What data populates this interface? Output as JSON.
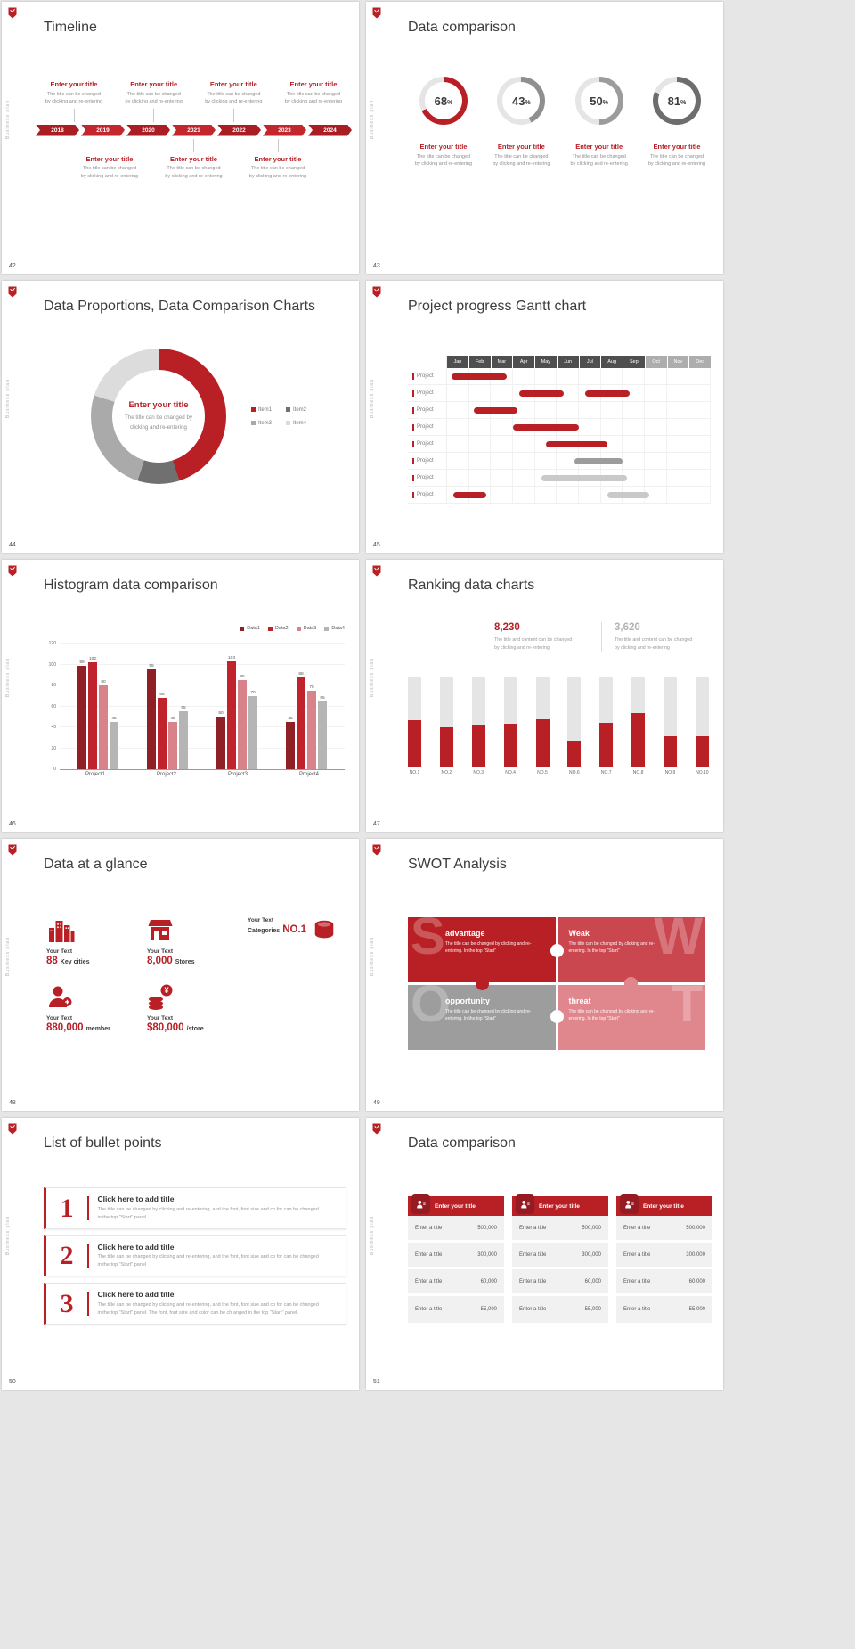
{
  "palette": {
    "accent": "#b92025",
    "accent_dark": "#951a22",
    "pink": "#e0868d",
    "gray": "#9d9d9d",
    "track": "#e5e5e5"
  },
  "frame": {
    "side_label": "Business plan"
  },
  "slide42": {
    "number": "42",
    "title": "Timeline",
    "item_title": "Enter your title",
    "item_line1": "The title can be changed",
    "item_line2": "by clicking and re-entering",
    "years": [
      "2018",
      "2019",
      "2020",
      "2021",
      "2022",
      "2023",
      "2024"
    ],
    "top_count": 4,
    "bottom_count": 3
  },
  "slide43": {
    "number": "43",
    "title": "Data comparison",
    "item_title": "Enter your title",
    "item_line1": "The title can be changed",
    "item_line2": "by clicking and re-entering"
  },
  "slide44": {
    "number": "44",
    "title": "Data Proportions, Data Comparison Charts",
    "center_title": "Enter your title",
    "center_line1": "The title can be changed by",
    "center_line2": "clicking and re-entering"
  },
  "slide45": {
    "number": "45",
    "title": "Project progress Gantt chart"
  },
  "slide46": {
    "number": "46",
    "title": "Histogram data comparison"
  },
  "slide47": {
    "number": "47",
    "title": "Ranking data charts",
    "stat1": "8,230",
    "stat2": "3,620",
    "note_line1": "The title and content can be changed",
    "note_line2": "by clicking and re-entering"
  },
  "slide48": {
    "number": "48",
    "title": "Data at a glance",
    "items": [
      {
        "label": "Your Text",
        "value": "88",
        "unit": "Key cities"
      },
      {
        "label": "Your Text",
        "value": "8,000",
        "unit": "Stores"
      },
      {
        "label": "Your Text",
        "prefix": "Categories",
        "value": "NO.1"
      },
      {
        "label": "Your Text",
        "value": "880,000",
        "unit": "member"
      },
      {
        "label": "Your Text",
        "value": "$80,000",
        "unit": "/store"
      }
    ]
  },
  "slide49": {
    "number": "49",
    "title": "SWOT Analysis",
    "cells": [
      {
        "letter": "S",
        "letter_side": "left",
        "title": "advantage",
        "color": "#b92025",
        "text": "The title can be changed by clicking and re-entering. In the top \"Start\""
      },
      {
        "letter": "W",
        "letter_side": "right",
        "title": "Weak",
        "color": "#ca4750",
        "text": "The title can be changed by clicking and re-entering. In the top \"Start\""
      },
      {
        "letter": "O",
        "letter_side": "left",
        "title": "opportunity",
        "color": "#9d9d9d",
        "text": "The title can be changed by clicking and re-entering. In the top \"Start\""
      },
      {
        "letter": "T",
        "letter_side": "right",
        "title": "threat",
        "color": "#e0868d",
        "text": "The title can be changed by clicking and re-entering. In the top \"Start\""
      }
    ]
  },
  "slide50": {
    "number": "50",
    "title": "List of bullet points",
    "items": [
      {
        "num": "1",
        "title": "Click here to add title",
        "text": "The title can be changed by clicking and re-entering, and the font, font size and co for can be changed in the top \"Start\" panel"
      },
      {
        "num": "2",
        "title": "Click here to add title",
        "text": "The title can be changed by clicking and re-entering, and the font, font size and co for can be changed in the top \"Start\" panel"
      },
      {
        "num": "3",
        "title": "Click here to add title",
        "text": "The title can be changed by clicking and re-entering, and the font, font size and co for can be changed in the top \"Start\" panel. The font, font size and color can be ch anged in the top \"Start\" panel."
      }
    ]
  },
  "slide51": {
    "number": "51",
    "title": "Data comparison",
    "header": "Enter your title",
    "row_label": "Enter a title",
    "values": [
      "500,000",
      "300,000",
      "60,000",
      "55,000"
    ]
  },
  "chart_data": [
    {
      "id": "progress-rings",
      "type": "pie",
      "subtype": "donut-progress-set",
      "values": [
        68,
        43,
        50,
        81
      ],
      "unit": "%",
      "colors": [
        "#b92025",
        "#8f8f8f",
        "#9c9c9c",
        "#6d6d6d"
      ],
      "track_color": "#e5e5e5"
    },
    {
      "id": "proportions-donut",
      "type": "pie",
      "labels": [
        "Item1",
        "Item2",
        "Item3",
        "Item4"
      ],
      "values": [
        45,
        10,
        25,
        20
      ],
      "colors": [
        "#b92025",
        "#707070",
        "#aaaaaa",
        "#dcdcdc"
      ],
      "legend_position": "right"
    },
    {
      "id": "gantt",
      "type": "gantt",
      "months": [
        "Jan",
        "Feb",
        "Mar",
        "Apr",
        "May",
        "Jun",
        "Jul",
        "Aug",
        "Sep",
        "Oct",
        "Nov",
        "Dec"
      ],
      "light_from": 9,
      "row_label": "Project",
      "rows": [
        {
          "bars": [
            {
              "start": 0.2,
              "span": 2.5,
              "color": "#b92025"
            }
          ]
        },
        {
          "bars": [
            {
              "start": 3.3,
              "span": 2.0,
              "color": "#b92025"
            },
            {
              "start": 6.3,
              "span": 2.0,
              "color": "#b92025"
            }
          ]
        },
        {
          "bars": [
            {
              "start": 1.2,
              "span": 2.0,
              "color": "#b92025"
            }
          ]
        },
        {
          "bars": [
            {
              "start": 3.0,
              "span": 3.0,
              "color": "#b92025"
            }
          ]
        },
        {
          "bars": [
            {
              "start": 4.5,
              "span": 2.8,
              "color": "#b92025"
            }
          ]
        },
        {
          "bars": [
            {
              "start": 5.8,
              "span": 2.2,
              "color": "#9c9c9c"
            }
          ]
        },
        {
          "bars": [
            {
              "start": 4.3,
              "span": 3.9,
              "color": "#c9c9c9"
            }
          ]
        },
        {
          "bars": [
            {
              "start": 0.3,
              "span": 1.5,
              "color": "#b92025"
            },
            {
              "start": 7.3,
              "span": 1.9,
              "color": "#c9c9c9"
            }
          ]
        }
      ]
    },
    {
      "id": "histogram",
      "type": "bar",
      "categories": [
        "Project1",
        "Project2",
        "Project3",
        "Project4"
      ],
      "series": [
        {
          "name": "Data1",
          "color": "#8f2025",
          "values": [
            99,
            95,
            50,
            45
          ]
        },
        {
          "name": "Data2",
          "color": "#c0232b",
          "values": [
            102,
            68,
            103,
            88
          ]
        },
        {
          "name": "Data3",
          "color": "#d8838a",
          "values": [
            80,
            45,
            85,
            75
          ]
        },
        {
          "name": "Data4",
          "color": "#b5b5b5",
          "values": [
            45,
            55,
            70,
            65
          ]
        }
      ],
      "ylim": [
        0,
        120
      ],
      "yticks": [
        0,
        20,
        40,
        60,
        80,
        100,
        120
      ],
      "legend_position": "top-right"
    },
    {
      "id": "ranking",
      "type": "bar",
      "categories": [
        "NO.1",
        "NO.2",
        "NO.3",
        "NO.4",
        "NO.5",
        "NO.6",
        "NO.7",
        "NO.8",
        "NO.9",
        "NO.10"
      ],
      "values": [
        52,
        44,
        47,
        48,
        53,
        29,
        49,
        60,
        34,
        34
      ],
      "ylim": [
        0,
        100
      ],
      "bar_color": "#b92025",
      "track_color": "#e5e5e5"
    }
  ]
}
